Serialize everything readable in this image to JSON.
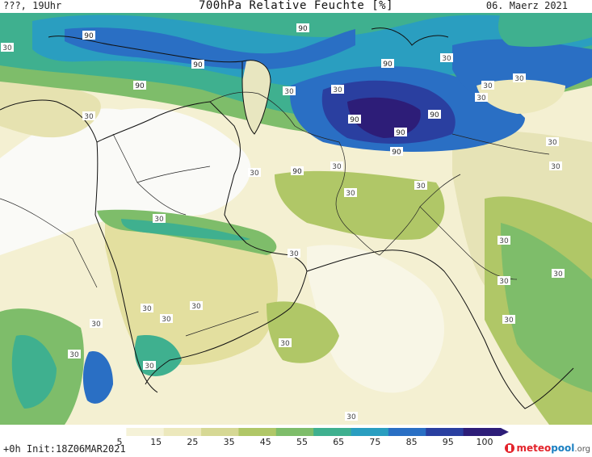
{
  "header": {
    "left": "???, 19Uhr",
    "title": "700hPa Relative Feuchte [%]",
    "date": "06. Maerz 2021"
  },
  "footer": {
    "run": "+0h  Init:18Z06MAR2021"
  },
  "logo": {
    "part1": "meteo",
    "part2": "pool",
    "part3": ".org"
  },
  "colorbar": {
    "labels": [
      "5",
      "15",
      "25",
      "35",
      "45",
      "55",
      "65",
      "75",
      "85",
      "95",
      "100"
    ],
    "colors": [
      "#ffffff",
      "#f5f2d8",
      "#ece8bc",
      "#d6d894",
      "#b0c767",
      "#7ebd6a",
      "#3fb08f",
      "#2a9ec0",
      "#2a6fc4",
      "#2a3fa0",
      "#2d1d78"
    ]
  },
  "contour_labels": [
    "90",
    "90",
    "90",
    "90",
    "90",
    "90",
    "90",
    "90",
    "90",
    "90",
    "30",
    "30",
    "30",
    "30",
    "30",
    "30",
    "30",
    "30",
    "30",
    "30",
    "30",
    "30",
    "30",
    "30",
    "30",
    "30",
    "30",
    "30",
    "30",
    "30",
    "30",
    "30",
    "30",
    "30",
    "30",
    "30",
    "30",
    "30"
  ]
}
